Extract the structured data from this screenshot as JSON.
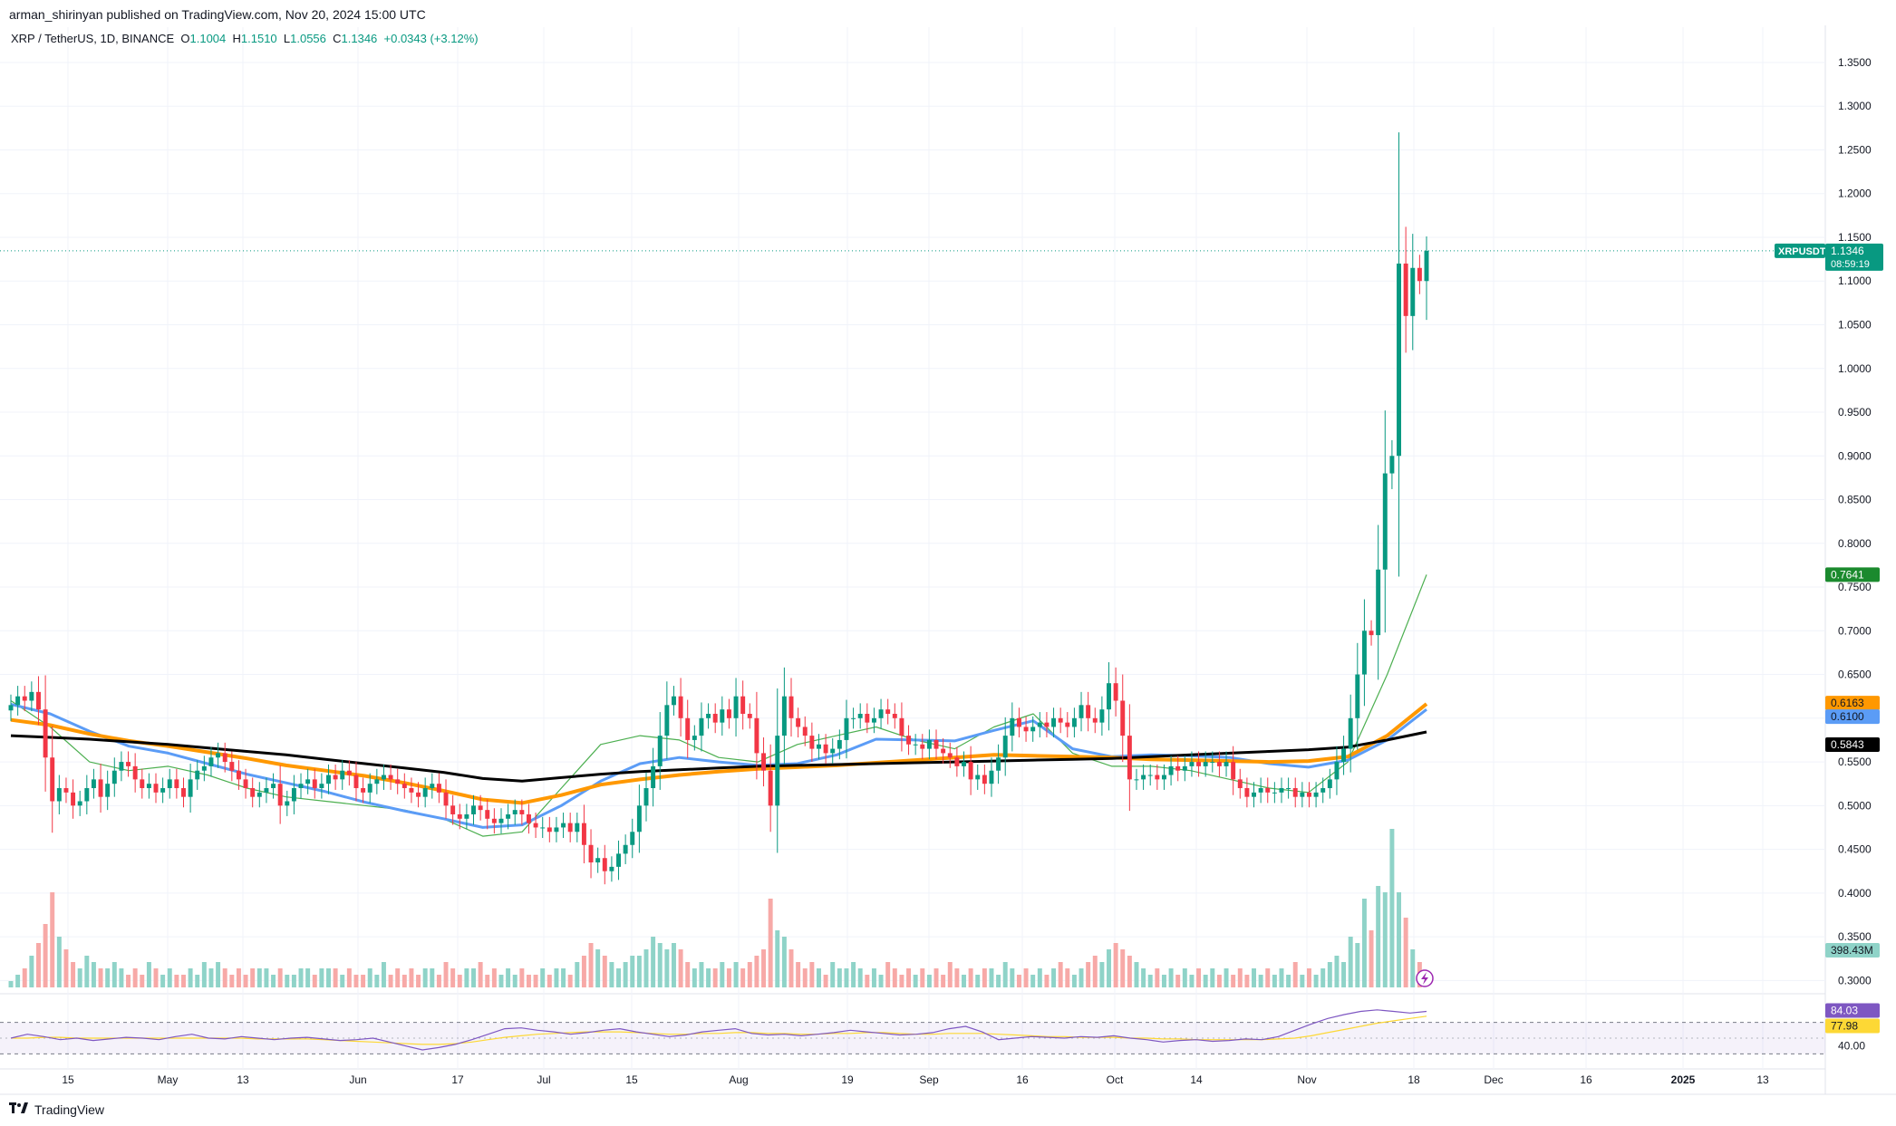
{
  "header": {
    "publisher": "arman_shirinyan published on TradingView.com, Nov 20, 2024 15:00 UTC",
    "symbol": "XRP / TetherUS, 1D, BINANCE",
    "open_label": "O",
    "open": "1.1004",
    "high_label": "H",
    "high": "1.1510",
    "low_label": "L",
    "low": "1.0556",
    "close_label": "C",
    "close": "1.1346",
    "change": "+0.0343 (+3.12%)"
  },
  "footer": {
    "brand": "TradingView"
  },
  "colors": {
    "up": "#089981",
    "down": "#f23645",
    "vol_up": "#8fd3c8",
    "vol_down": "#f7a9a7",
    "ma_black": "#000000",
    "ma_orange": "#ff9800",
    "ma_blue": "#5b9cf6",
    "ma_green": "#4caf50",
    "rsi": "#7e57c2",
    "rsi_ma": "#fdd835",
    "grid": "#f0f3fa"
  },
  "chart_data": {
    "type": "candlestick",
    "title": "XRP / TetherUS, 1D, BINANCE",
    "x_ticks": [
      "15",
      "May",
      "13",
      "Jun",
      "17",
      "Jul",
      "15",
      "Aug",
      "19",
      "Sep",
      "16",
      "Oct",
      "14",
      "Nov",
      "18",
      "Dec",
      "16",
      "2025",
      "13"
    ],
    "y_ticks": [
      "1.3500",
      "1.3000",
      "1.2500",
      "1.2000",
      "1.1500",
      "1.1000",
      "1.0500",
      "1.0000",
      "0.9500",
      "0.9000",
      "0.8500",
      "0.8000",
      "0.7500",
      "0.7000",
      "0.6500",
      "0.6000",
      "0.5500",
      "0.5000",
      "0.4500",
      "0.4000",
      "0.3500",
      "0.3000"
    ],
    "ylim": [
      0.29,
      1.38
    ],
    "price_badges": [
      {
        "label": "XRPUSDT",
        "value": "1.1346",
        "sub": "08:59:19",
        "price": 1.1346,
        "color": "#089981"
      },
      {
        "value": "0.7641",
        "price": 0.7641,
        "color": "#1b8a2e"
      },
      {
        "value": "0.6163",
        "price": 0.6163,
        "color": "#ff9800"
      },
      {
        "value": "0.6100",
        "price": 0.61,
        "color": "#5b9cf6"
      },
      {
        "value": "0.5843",
        "price": 0.5843,
        "color": "#000000"
      }
    ],
    "volume_badge": "398.43M",
    "rsi": {
      "value": "84.03",
      "ma_value": "77.98",
      "level_label": "40.00",
      "range": [
        20,
        95
      ],
      "upper": 70,
      "lower": 30
    },
    "closes": [
      0.615,
      0.625,
      0.62,
      0.63,
      0.61,
      0.555,
      0.505,
      0.52,
      0.515,
      0.5,
      0.505,
      0.52,
      0.53,
      0.51,
      0.525,
      0.54,
      0.55,
      0.545,
      0.53,
      0.52,
      0.525,
      0.515,
      0.52,
      0.53,
      0.52,
      0.51,
      0.53,
      0.54,
      0.545,
      0.555,
      0.56,
      0.55,
      0.54,
      0.53,
      0.52,
      0.51,
      0.515,
      0.52,
      0.525,
      0.5,
      0.505,
      0.52,
      0.525,
      0.53,
      0.52,
      0.525,
      0.535,
      0.53,
      0.54,
      0.535,
      0.52,
      0.515,
      0.525,
      0.53,
      0.535,
      0.53,
      0.525,
      0.52,
      0.515,
      0.51,
      0.52,
      0.525,
      0.515,
      0.5,
      0.49,
      0.485,
      0.49,
      0.5,
      0.495,
      0.485,
      0.48,
      0.485,
      0.49,
      0.495,
      0.49,
      0.48,
      0.475,
      0.475,
      0.47,
      0.475,
      0.48,
      0.47,
      0.48,
      0.455,
      0.435,
      0.44,
      0.425,
      0.43,
      0.445,
      0.455,
      0.47,
      0.5,
      0.52,
      0.545,
      0.58,
      0.615,
      0.625,
      0.6,
      0.575,
      0.58,
      0.6,
      0.605,
      0.595,
      0.61,
      0.6,
      0.625,
      0.605,
      0.6,
      0.56,
      0.54,
      0.5,
      0.58,
      0.625,
      0.6,
      0.59,
      0.58,
      0.565,
      0.57,
      0.56,
      0.565,
      0.575,
      0.6,
      0.6,
      0.605,
      0.595,
      0.6,
      0.61,
      0.605,
      0.6,
      0.58,
      0.57,
      0.57,
      0.565,
      0.575,
      0.565,
      0.56,
      0.555,
      0.545,
      0.55,
      0.53,
      0.535,
      0.525,
      0.54,
      0.555,
      0.58,
      0.6,
      0.59,
      0.585,
      0.59,
      0.595,
      0.59,
      0.6,
      0.595,
      0.59,
      0.6,
      0.615,
      0.6,
      0.595,
      0.61,
      0.64,
      0.62,
      0.58,
      0.53,
      0.53,
      0.535,
      0.535,
      0.53,
      0.535,
      0.545,
      0.54,
      0.545,
      0.55,
      0.545,
      0.55,
      0.55,
      0.545,
      0.55,
      0.53,
      0.52,
      0.51,
      0.515,
      0.52,
      0.515,
      0.515,
      0.52,
      0.52,
      0.51,
      0.515,
      0.51,
      0.515,
      0.52,
      0.53,
      0.55,
      0.565,
      0.6,
      0.65,
      0.7,
      0.695,
      0.77,
      0.88,
      0.9,
      1.12,
      1.06,
      1.115,
      1.1,
      1.1346
    ],
    "volumes": [
      0.31,
      0.32,
      0.33,
      0.35,
      0.37,
      0.4,
      0.45,
      0.38,
      0.36,
      0.34,
      0.33,
      0.35,
      0.34,
      0.33,
      0.33,
      0.34,
      0.33,
      0.32,
      0.33,
      0.32,
      0.34,
      0.33,
      0.32,
      0.33,
      0.32,
      0.32,
      0.33,
      0.32,
      0.34,
      0.33,
      0.34,
      0.33,
      0.32,
      0.33,
      0.32,
      0.33,
      0.33,
      0.33,
      0.32,
      0.33,
      0.32,
      0.32,
      0.33,
      0.33,
      0.32,
      0.33,
      0.33,
      0.33,
      0.32,
      0.33,
      0.32,
      0.32,
      0.33,
      0.32,
      0.34,
      0.32,
      0.33,
      0.32,
      0.33,
      0.32,
      0.33,
      0.33,
      0.32,
      0.34,
      0.33,
      0.32,
      0.33,
      0.33,
      0.34,
      0.32,
      0.33,
      0.32,
      0.33,
      0.32,
      0.33,
      0.32,
      0.32,
      0.33,
      0.32,
      0.33,
      0.33,
      0.32,
      0.34,
      0.35,
      0.37,
      0.36,
      0.35,
      0.34,
      0.33,
      0.34,
      0.35,
      0.35,
      0.36,
      0.38,
      0.37,
      0.36,
      0.37,
      0.36,
      0.34,
      0.33,
      0.34,
      0.33,
      0.33,
      0.34,
      0.33,
      0.34,
      0.33,
      0.34,
      0.35,
      0.36,
      0.44,
      0.39,
      0.38,
      0.36,
      0.34,
      0.33,
      0.34,
      0.33,
      0.32,
      0.34,
      0.33,
      0.33,
      0.34,
      0.33,
      0.32,
      0.33,
      0.32,
      0.34,
      0.33,
      0.32,
      0.33,
      0.32,
      0.33,
      0.32,
      0.33,
      0.32,
      0.34,
      0.33,
      0.32,
      0.33,
      0.32,
      0.33,
      0.33,
      0.32,
      0.34,
      0.33,
      0.32,
      0.33,
      0.32,
      0.33,
      0.32,
      0.33,
      0.34,
      0.33,
      0.32,
      0.33,
      0.34,
      0.35,
      0.34,
      0.36,
      0.37,
      0.36,
      0.35,
      0.34,
      0.33,
      0.32,
      0.33,
      0.32,
      0.33,
      0.32,
      0.33,
      0.32,
      0.33,
      0.32,
      0.33,
      0.32,
      0.33,
      0.32,
      0.33,
      0.32,
      0.33,
      0.32,
      0.33,
      0.32,
      0.33,
      0.32,
      0.34,
      0.32,
      0.33,
      0.32,
      0.33,
      0.34,
      0.35,
      0.34,
      0.38,
      0.37,
      0.44,
      0.39,
      0.46,
      0.45,
      0.55,
      0.45,
      0.41,
      0.36,
      0.34
    ],
    "ma_black": [
      0.58,
      0.578,
      0.576,
      0.573,
      0.57,
      0.566,
      0.562,
      0.558,
      0.553,
      0.548,
      0.543,
      0.538,
      0.531,
      0.528,
      0.532,
      0.536,
      0.539,
      0.541,
      0.543,
      0.545,
      0.546,
      0.547,
      0.548,
      0.549,
      0.55,
      0.551,
      0.552,
      0.553,
      0.554,
      0.556,
      0.558,
      0.56,
      0.562,
      0.564,
      0.567,
      0.575,
      0.5843
    ],
    "ma_orange": [
      0.598,
      0.592,
      0.582,
      0.574,
      0.568,
      0.561,
      0.554,
      0.546,
      0.54,
      0.534,
      0.526,
      0.517,
      0.507,
      0.503,
      0.512,
      0.524,
      0.53,
      0.535,
      0.539,
      0.542,
      0.544,
      0.546,
      0.549,
      0.552,
      0.555,
      0.558,
      0.557,
      0.556,
      0.555,
      0.553,
      0.552,
      0.551,
      0.55,
      0.551,
      0.556,
      0.58,
      0.6163
    ],
    "ma_blue": [
      0.616,
      0.605,
      0.585,
      0.568,
      0.56,
      0.548,
      0.536,
      0.526,
      0.516,
      0.504,
      0.494,
      0.485,
      0.475,
      0.478,
      0.5,
      0.528,
      0.548,
      0.555,
      0.55,
      0.546,
      0.548,
      0.558,
      0.576,
      0.575,
      0.574,
      0.586,
      0.597,
      0.565,
      0.556,
      0.558,
      0.557,
      0.555,
      0.548,
      0.544,
      0.552,
      0.575,
      0.61
    ],
    "ma_green": [
      0.62,
      0.59,
      0.55,
      0.54,
      0.545,
      0.535,
      0.52,
      0.51,
      0.505,
      0.5,
      0.495,
      0.485,
      0.465,
      0.47,
      0.52,
      0.57,
      0.58,
      0.575,
      0.555,
      0.55,
      0.57,
      0.58,
      0.59,
      0.575,
      0.565,
      0.59,
      0.605,
      0.56,
      0.545,
      0.545,
      0.54,
      0.53,
      0.52,
      0.515,
      0.55,
      0.65,
      0.7641
    ],
    "rsi_values": [
      50,
      55,
      52,
      48,
      50,
      47,
      49,
      51,
      50,
      48,
      52,
      55,
      50,
      49,
      52,
      50,
      48,
      50,
      51,
      49,
      47,
      48,
      50,
      45,
      40,
      35,
      38,
      42,
      48,
      55,
      62,
      63,
      60,
      58,
      55,
      57,
      60,
      62,
      58,
      55,
      52,
      54,
      58,
      60,
      62,
      56,
      54,
      55,
      53,
      55,
      57,
      60,
      58,
      56,
      54,
      55,
      57,
      62,
      65,
      58,
      48,
      50,
      52,
      51,
      50,
      52,
      51,
      53,
      50,
      48,
      45,
      47,
      48,
      46,
      47,
      49,
      48,
      52,
      60,
      68,
      75,
      80,
      84,
      86,
      84,
      82,
      84.03
    ],
    "rsi_ma_values": [
      50,
      50,
      51,
      51,
      50,
      50,
      50,
      50,
      50,
      50,
      50,
      50,
      50,
      50,
      50,
      49,
      49,
      49,
      49,
      48,
      47,
      46,
      45,
      44,
      43,
      42,
      42,
      43,
      45,
      48,
      51,
      53,
      55,
      56,
      57,
      58,
      58,
      58,
      57,
      56,
      55,
      55,
      56,
      56,
      57,
      57,
      56,
      56,
      55,
      55,
      56,
      56,
      57,
      57,
      56,
      55,
      55,
      56,
      56,
      56,
      55,
      54,
      53,
      52,
      52,
      51,
      51,
      51,
      50,
      50,
      49,
      49,
      48,
      48,
      48,
      48,
      48,
      49,
      50,
      53,
      57,
      61,
      65,
      69,
      72,
      75,
      77.98
    ]
  }
}
